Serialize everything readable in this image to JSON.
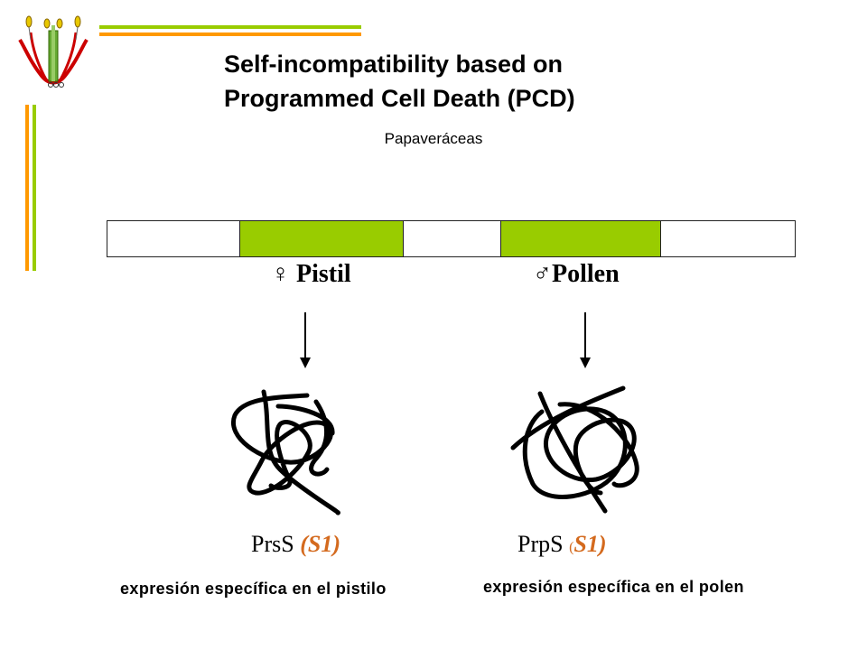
{
  "title_line1": "Self-incompatibility based on",
  "title_line2": "Programmed Cell Death (PCD)",
  "subtitle": "Papaveráceas",
  "colors": {
    "green": "#99cc00",
    "orange": "#ff9900",
    "allele": "#d46a1e"
  },
  "gene_bar": {
    "segments": [
      {
        "name": "intergenic-1",
        "color": "#ffffff"
      },
      {
        "name": "pistil-gene",
        "color": "#99cc00"
      },
      {
        "name": "intergenic-2",
        "color": "#ffffff"
      },
      {
        "name": "pollen-gene",
        "color": "#99cc00"
      },
      {
        "name": "intergenic-3",
        "color": "#ffffff"
      }
    ]
  },
  "pistil": {
    "symbol": "♀",
    "label": "Pistil",
    "protein": "PrsS",
    "allele_open": "(",
    "allele": "S1",
    "allele_close": ")",
    "expression": "expresión específica en el pistilo"
  },
  "pollen": {
    "symbol": "♂",
    "label": "Pollen",
    "protein": "PrpS",
    "allele_open": "(",
    "allele": "S1",
    "allele_close": ")",
    "expression": "expresión específica en el polen"
  },
  "icons": [
    "flower-logo-icon",
    "down-arrow-icon",
    "tangled-protein-icon"
  ]
}
